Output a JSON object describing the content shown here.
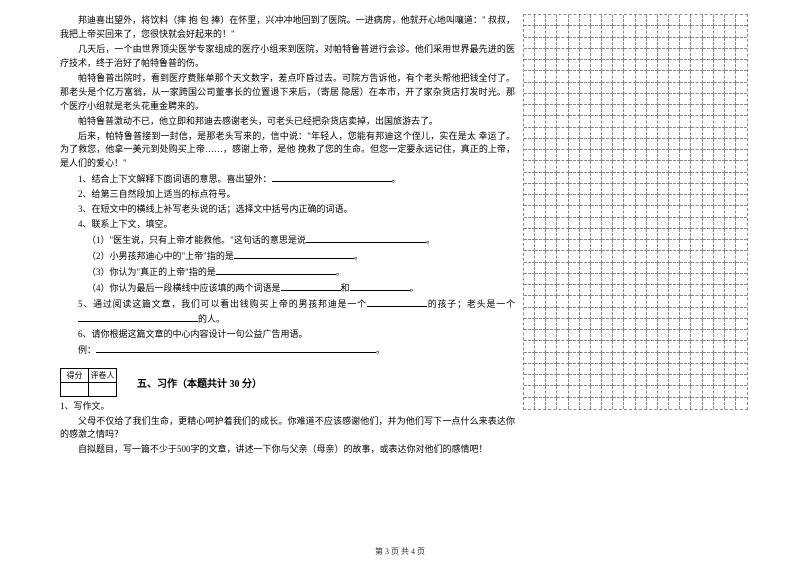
{
  "passage": {
    "p1": "邦迪喜出望外，将饮料（摔  抱  包  捧）在怀里，兴冲冲地回到了医院。一进病房，他就开心地叫嚷道：\" 叔叔，我把上帝买回来了，您很快就会好起来的！\"",
    "p2": "几天后，一个由世界顶尖医学专家组成的医疗小组来到医院，对帕特鲁普进行会诊。他们采用世界最先进的医疗技术，终于治好了帕特鲁普的伤。",
    "p3": "帕特鲁普出院时，看到医疗费账单那个天文数字，差点吓昏过去。可院方告诉他，有个老头帮他把钱全付了。那老头是个亿万富翁，从一家跨国公司董事长的位置退下来后，（寄居 隐居）在本市，开了家杂货店打发时光。那个医疗小组就是老头花重金聘来的。",
    "p4": "帕特鲁普激动不已，他立即和邦迪去感谢老头，可老头已经把杂货店卖掉，出国旅游去了。",
    "p5": "后来，帕特鲁普接到一封信，是那老头写来的，信中说：\"年轻人，您能有邦迪这个侄儿，实在是太   幸运了。为了救您，他拿一美元到处购买上帝……，感谢上帝，是他  挽救了您的生命。但您一定要永远记住，真正的上帝，是人们的爱心！\""
  },
  "questions": {
    "q1": "1、结合上下文解释下面词语的意思。喜出望外：",
    "q2": "2、给第三自然段加上适当的标点符号。",
    "q3": "3、在短文中的横线上补写老头说的话；选择文中括号内正确的词语。",
    "q4": "4、联系上下文，填空。",
    "q4_1_a": "（1）\"医生说，只有上帝才能救他。\"这句话的意思是说",
    "q4_2_a": "（2）小男孩邦迪心中的\"上帝\"指的是",
    "q4_3_a": "（3）你认为\"真正的上帝\"指的是",
    "q4_4_a": "（4）你认为最后一段横线中应该填的两个词语是",
    "q4_4_b": "和",
    "q5_a": "5、通过阅读这篇文章，我们可以看出钱购买上帝的男孩邦迪是一个",
    "q5_b": "的孩子；老头是一个",
    "q5_c": "的人。",
    "q6": "6、请你根据这篇文章的中心内容设计一句公益广告用语。",
    "q6_ex": "例：",
    "q6_blank": "。"
  },
  "score_header": {
    "c1": "得分",
    "c2": "评卷人"
  },
  "section5": {
    "title": "五、习作（本题共计 30 分）"
  },
  "essay": {
    "q": "1、写作文。",
    "p1": "父母不仅给了我们生命，更精心呵护着我们的成长。你难道不应该感谢他们，并为他们写下一点什么来表达你的感激之情吗？",
    "p2": "自拟题目，写一篇不少于500字的文章，讲述一下你与父亲（母亲）的故事，或表达你对他们的感情吧！"
  },
  "footer": "第 3 页  共 4 页",
  "grid": {
    "rows": 35,
    "cols": 20
  }
}
